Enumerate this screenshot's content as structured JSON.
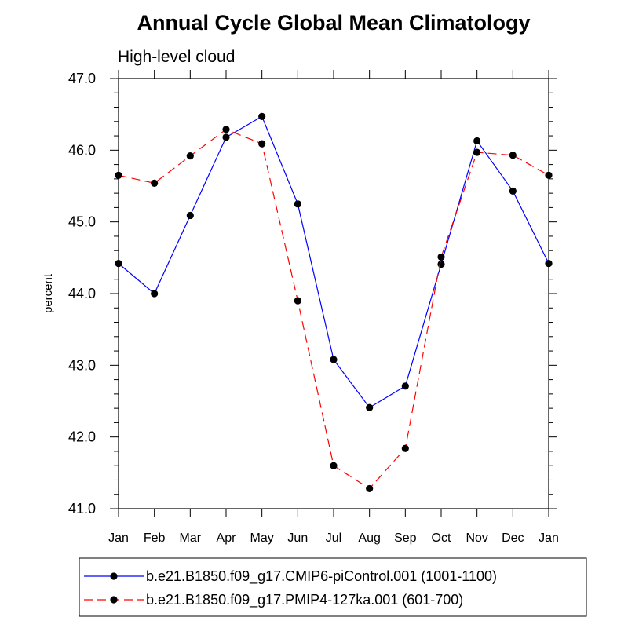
{
  "chart_data": {
    "type": "line",
    "title": "Annual Cycle Global Mean Climatology",
    "subtitle": "High-level cloud",
    "xlabel": "",
    "ylabel": "percent",
    "categories": [
      "Jan",
      "Feb",
      "Mar",
      "Apr",
      "May",
      "Jun",
      "Jul",
      "Aug",
      "Sep",
      "Oct",
      "Nov",
      "Dec",
      "Jan"
    ],
    "ylim": [
      41.0,
      47.0
    ],
    "yticks": [
      "41.0",
      "42.0",
      "43.0",
      "44.0",
      "45.0",
      "46.0",
      "47.0"
    ],
    "grid": false,
    "legend_position": "bottom",
    "series": [
      {
        "name": "b.e21.B1850.f09_g17.CMIP6-piControl.001 (1001-1100)",
        "color": "#0000ff",
        "line_style": "solid",
        "marker": "filled-circle",
        "values": [
          44.42,
          44.0,
          45.09,
          46.18,
          46.47,
          45.25,
          43.08,
          42.41,
          42.71,
          44.41,
          46.13,
          45.43,
          44.42
        ]
      },
      {
        "name": "b.e21.B1850.f09_g17.PMIP4-127ka.001 (601-700)",
        "color": "#ff0000",
        "line_style": "dashed",
        "marker": "filled-circle",
        "values": [
          45.65,
          45.54,
          45.92,
          46.29,
          46.09,
          43.9,
          41.6,
          41.28,
          41.84,
          44.51,
          45.97,
          45.93,
          45.65
        ]
      }
    ]
  }
}
